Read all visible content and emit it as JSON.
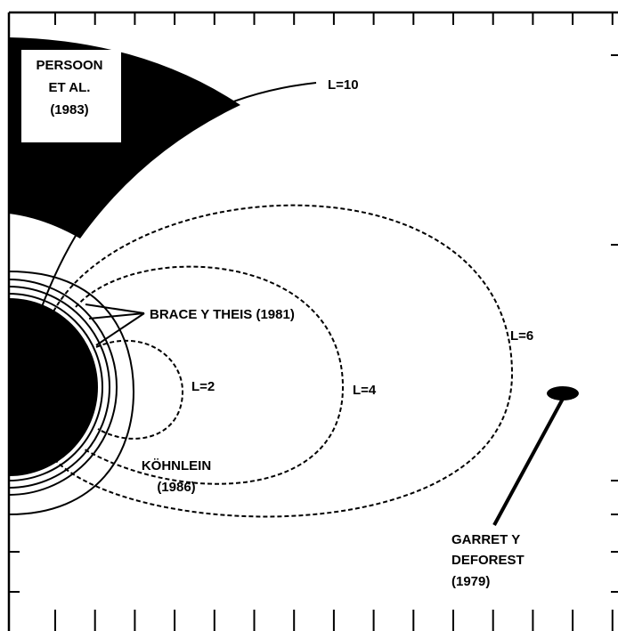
{
  "labels": {
    "persoon": [
      "PERSOON",
      "ET AL.",
      "(1983)"
    ],
    "l10": "L=10",
    "brace": "BRACE Y THEIS (1981)",
    "l6": "L=6",
    "l2": "L=2",
    "l4": "L=4",
    "kohnlein": [
      "KÖHNLEIN",
      "(1986)"
    ],
    "garret": [
      "GARRET Y",
      "DEFOREST",
      "(1979)"
    ]
  }
}
